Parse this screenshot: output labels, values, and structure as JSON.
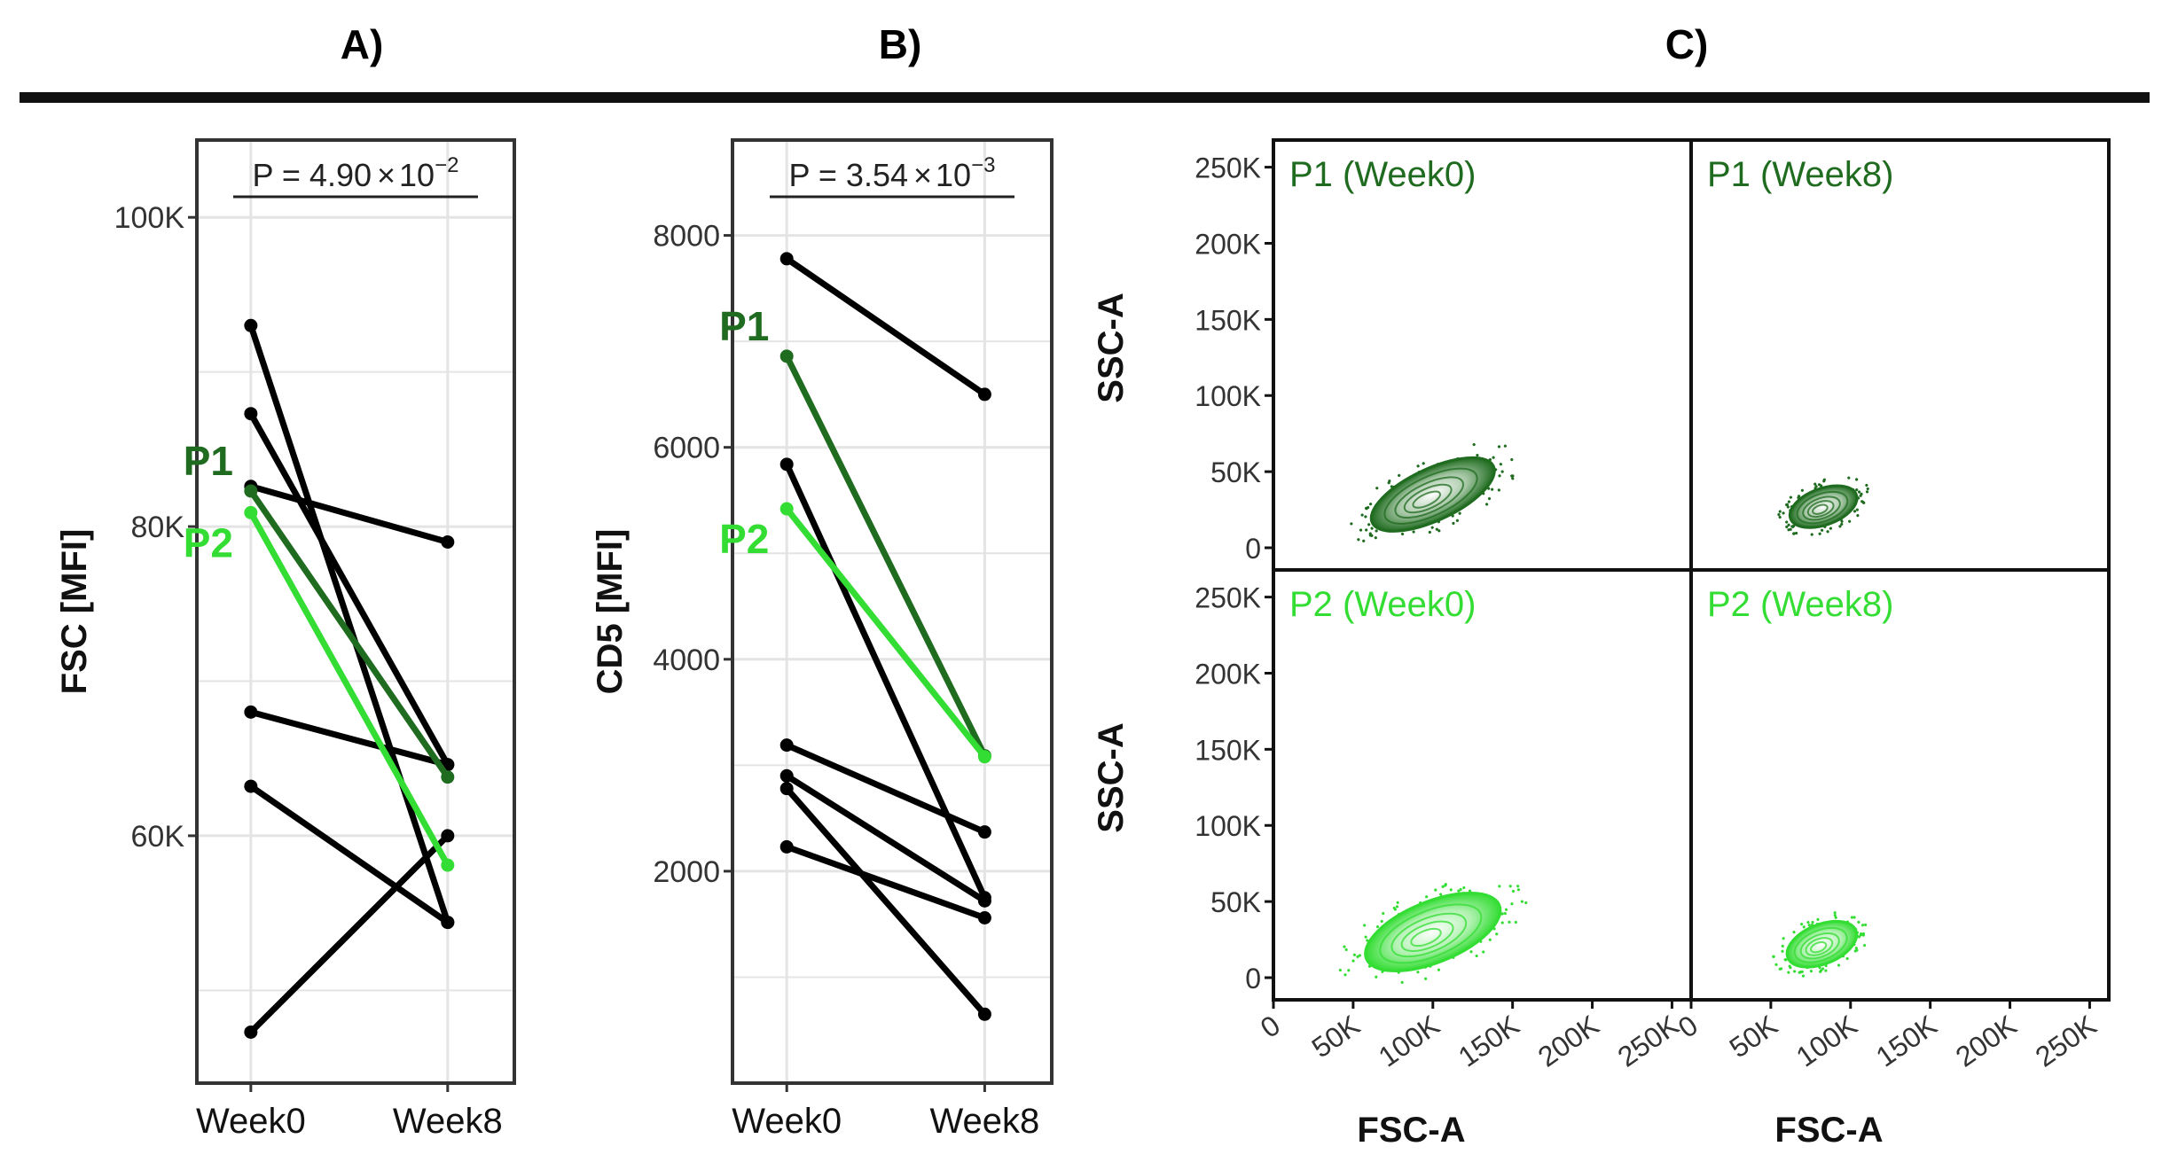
{
  "panel_labels": {
    "a": "A)",
    "b": "B)",
    "c": "C)"
  },
  "colors": {
    "black": "#000000",
    "p1": "#1f6b1f",
    "p2": "#33dd33",
    "grid": "#e4e4e4",
    "frame": "#333333"
  },
  "chart_data": [
    {
      "type": "line",
      "panel": "A",
      "title": "",
      "ylabel": "FSC [MFI]",
      "xlabel": "",
      "categories": [
        "Week0",
        "Week8"
      ],
      "ylim": [
        44000,
        105000
      ],
      "ytick_values": [
        60000,
        80000,
        100000
      ],
      "ytick_labels": [
        "60K",
        "80K",
        "100K"
      ],
      "pvalue": {
        "base": "P = 4.90",
        "times": "×",
        "ten": "10",
        "exp": "−2"
      },
      "series": [
        {
          "name": "",
          "values": [
            93000,
            54400
          ]
        },
        {
          "name": "",
          "values": [
            87300,
            64600
          ]
        },
        {
          "name": "",
          "values": [
            82600,
            79000
          ]
        },
        {
          "name": "",
          "values": [
            68000,
            64600
          ]
        },
        {
          "name": "",
          "values": [
            63200,
            54400
          ]
        },
        {
          "name": "",
          "values": [
            47300,
            60000
          ]
        },
        {
          "name": "P1",
          "values": [
            82300,
            63800
          ],
          "highlight": "p1"
        },
        {
          "name": "P2",
          "values": [
            80900,
            58100
          ],
          "highlight": "p2"
        }
      ]
    },
    {
      "type": "line",
      "panel": "B",
      "title": "",
      "ylabel": "CD5 [MFI]",
      "xlabel": "",
      "categories": [
        "Week0",
        "Week8"
      ],
      "ylim": [
        0,
        8900
      ],
      "ytick_values": [
        2000,
        4000,
        6000,
        8000
      ],
      "ytick_labels": [
        "2000",
        "4000",
        "6000",
        "8000"
      ],
      "pvalue": {
        "base": "P = 3.54",
        "times": "×",
        "ten": "10",
        "exp": "−3"
      },
      "series": [
        {
          "name": "",
          "values": [
            7780,
            6500
          ]
        },
        {
          "name": "",
          "values": [
            5840,
            1750
          ]
        },
        {
          "name": "",
          "values": [
            3190,
            2370
          ]
        },
        {
          "name": "",
          "values": [
            2900,
            1720
          ]
        },
        {
          "name": "",
          "values": [
            2780,
            650
          ]
        },
        {
          "name": "",
          "values": [
            2230,
            1560
          ]
        },
        {
          "name": "P1",
          "values": [
            6860,
            3090
          ],
          "highlight": "p1"
        },
        {
          "name": "P2",
          "values": [
            5420,
            3080
          ],
          "highlight": "p2"
        }
      ]
    },
    {
      "type": "scatter",
      "panel": "C",
      "xlabel": "FSC-A",
      "ylabel": "SSC-A",
      "xlim": [
        0,
        262000
      ],
      "ylim": [
        0,
        262000
      ],
      "xtick_values": [
        0,
        50000,
        100000,
        150000,
        200000,
        250000
      ],
      "xtick_labels": [
        "0",
        "50K",
        "100K",
        "150K",
        "200K",
        "250K"
      ],
      "ytick_values": [
        0,
        50000,
        100000,
        150000,
        200000,
        250000
      ],
      "ytick_labels": [
        "0",
        "50K",
        "100K",
        "150K",
        "200K",
        "250K"
      ],
      "facets": [
        {
          "label": "P1 (Week0)",
          "color": "p1",
          "center_x": 100000,
          "center_y": 35000,
          "spread_x": 42000,
          "spread_y": 17000,
          "tilt": -25
        },
        {
          "label": "P1 (Week8)",
          "color": "p1",
          "center_x": 83000,
          "center_y": 27000,
          "spread_x": 22000,
          "spread_y": 12000,
          "tilt": -20
        },
        {
          "label": "P2 (Week0)",
          "color": "p2",
          "center_x": 100000,
          "center_y": 30000,
          "spread_x": 45000,
          "spread_y": 20000,
          "tilt": -22
        },
        {
          "label": "P2 (Week8)",
          "color": "p2",
          "center_x": 82000,
          "center_y": 22000,
          "spread_x": 23000,
          "spread_y": 13000,
          "tilt": -22
        }
      ]
    }
  ]
}
